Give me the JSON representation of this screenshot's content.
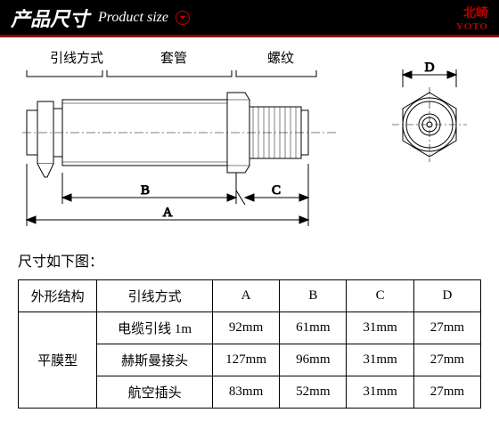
{
  "header": {
    "title_cn": "产品尺寸",
    "title_en": "Product size",
    "brand_cn": "北崎",
    "brand_en": "YOTO"
  },
  "diagram": {
    "label_lead": "引线方式",
    "label_sleeve": "套管",
    "label_thread": "螺纹",
    "dim_a": "A",
    "dim_b": "B",
    "dim_c": "C",
    "dim_d": "D"
  },
  "subtitle": "尺寸如下图：",
  "table": {
    "headers": [
      "外形结构",
      "引线方式",
      "A",
      "B",
      "C",
      "D"
    ],
    "structure_label": "平膜型",
    "rows": [
      [
        "电缆引线 1m",
        "92mm",
        "61mm",
        "31mm",
        "27mm"
      ],
      [
        "赫斯曼接头",
        "127mm",
        "96mm",
        "31mm",
        "27mm"
      ],
      [
        "航空插头",
        "83mm",
        "52mm",
        "31mm",
        "27mm"
      ]
    ],
    "col_widths": [
      "17%",
      "25%",
      "14.5%",
      "14.5%",
      "14.5%",
      "14.5%"
    ]
  },
  "colors": {
    "header_bg": "#000000",
    "accent": "#8b0000",
    "brand": "#b00000",
    "line": "#000000"
  }
}
